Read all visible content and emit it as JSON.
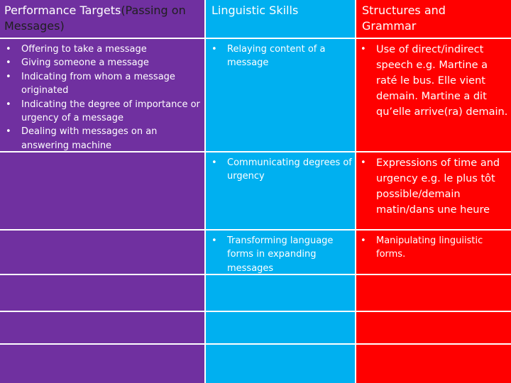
{
  "headers": {
    "col1_main": "Performance Targets",
    "col1_paren": "(Passing on",
    "col1_line2": "Messages)",
    "col2": "Linguistic Skills",
    "col3_line1": "Structures and",
    "col3_line2": "Grammar"
  },
  "performance_targets": [
    "Offering to take a message",
    "Giving  someone a message",
    "Indicating from whom a message originated",
    "Indicating the degree of importance or urgency of a message",
    "Dealing with messages on an answering machine"
  ],
  "rows": [
    {
      "skill": "Relaying content of a message",
      "grammar": "Use of direct/indirect speech e.g. Martine a raté le bus. Elle vient demain. Martine a dit qu’elle arrive(ra) demain."
    },
    {
      "skill": "Communicating degrees of urgency",
      "grammar": "Expressions of time and urgency e.g. le plus tôt possible/demain matin/dans une heure"
    },
    {
      "skill": "Transforming language forms in expanding messages",
      "grammar": "Manipulating linguiistic forms."
    }
  ],
  "colors": {
    "col1": "#7030a0",
    "col2": "#00b0f0",
    "col3": "#ff0000",
    "header_highlight_text": "#1f1f1f",
    "grid": "#ffffff"
  }
}
